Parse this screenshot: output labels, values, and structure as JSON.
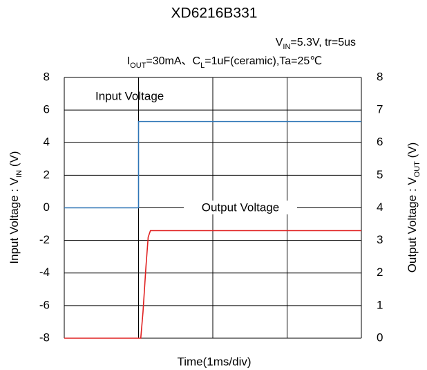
{
  "chart_data": {
    "type": "line",
    "title": "XD6216B331",
    "subtitle": [
      [
        "V",
        "IN",
        "=5.3V, tr=5us"
      ],
      [
        "I",
        "OUT",
        "=30mA、C",
        "L",
        "=1uF(ceramic),Ta=25℃"
      ]
    ],
    "xlabel": "Time(1ms/div)",
    "ylabel": [
      "Input Voltage : V",
      "IN",
      " (V)"
    ],
    "y2label": [
      "Output Voltage : V",
      "OUT",
      " (V)"
    ],
    "xlim": [
      0,
      4
    ],
    "xticks": [
      0,
      1,
      2,
      3,
      4
    ],
    "ylim": [
      -8,
      8
    ],
    "yticks": [
      -8,
      -6,
      -4,
      -2,
      0,
      2,
      4,
      6,
      8
    ],
    "y2lim": [
      0,
      8
    ],
    "y2ticks": [
      0,
      1,
      2,
      3,
      4,
      5,
      6,
      7,
      8
    ],
    "grid": true,
    "series": [
      {
        "name": "Input Voltage",
        "color": "#2e75b6",
        "x": [
          0,
          1.0,
          1.0,
          4
        ],
        "values": [
          0,
          0,
          5.3,
          5.3
        ]
      },
      {
        "name": "Output Voltage",
        "color": "#e02020",
        "axis": "y2",
        "x": [
          0,
          1.03,
          1.06,
          1.1,
          1.13,
          1.16,
          4
        ],
        "values": [
          0,
          0,
          0.8,
          2.2,
          3.1,
          3.3,
          3.3
        ]
      }
    ]
  }
}
